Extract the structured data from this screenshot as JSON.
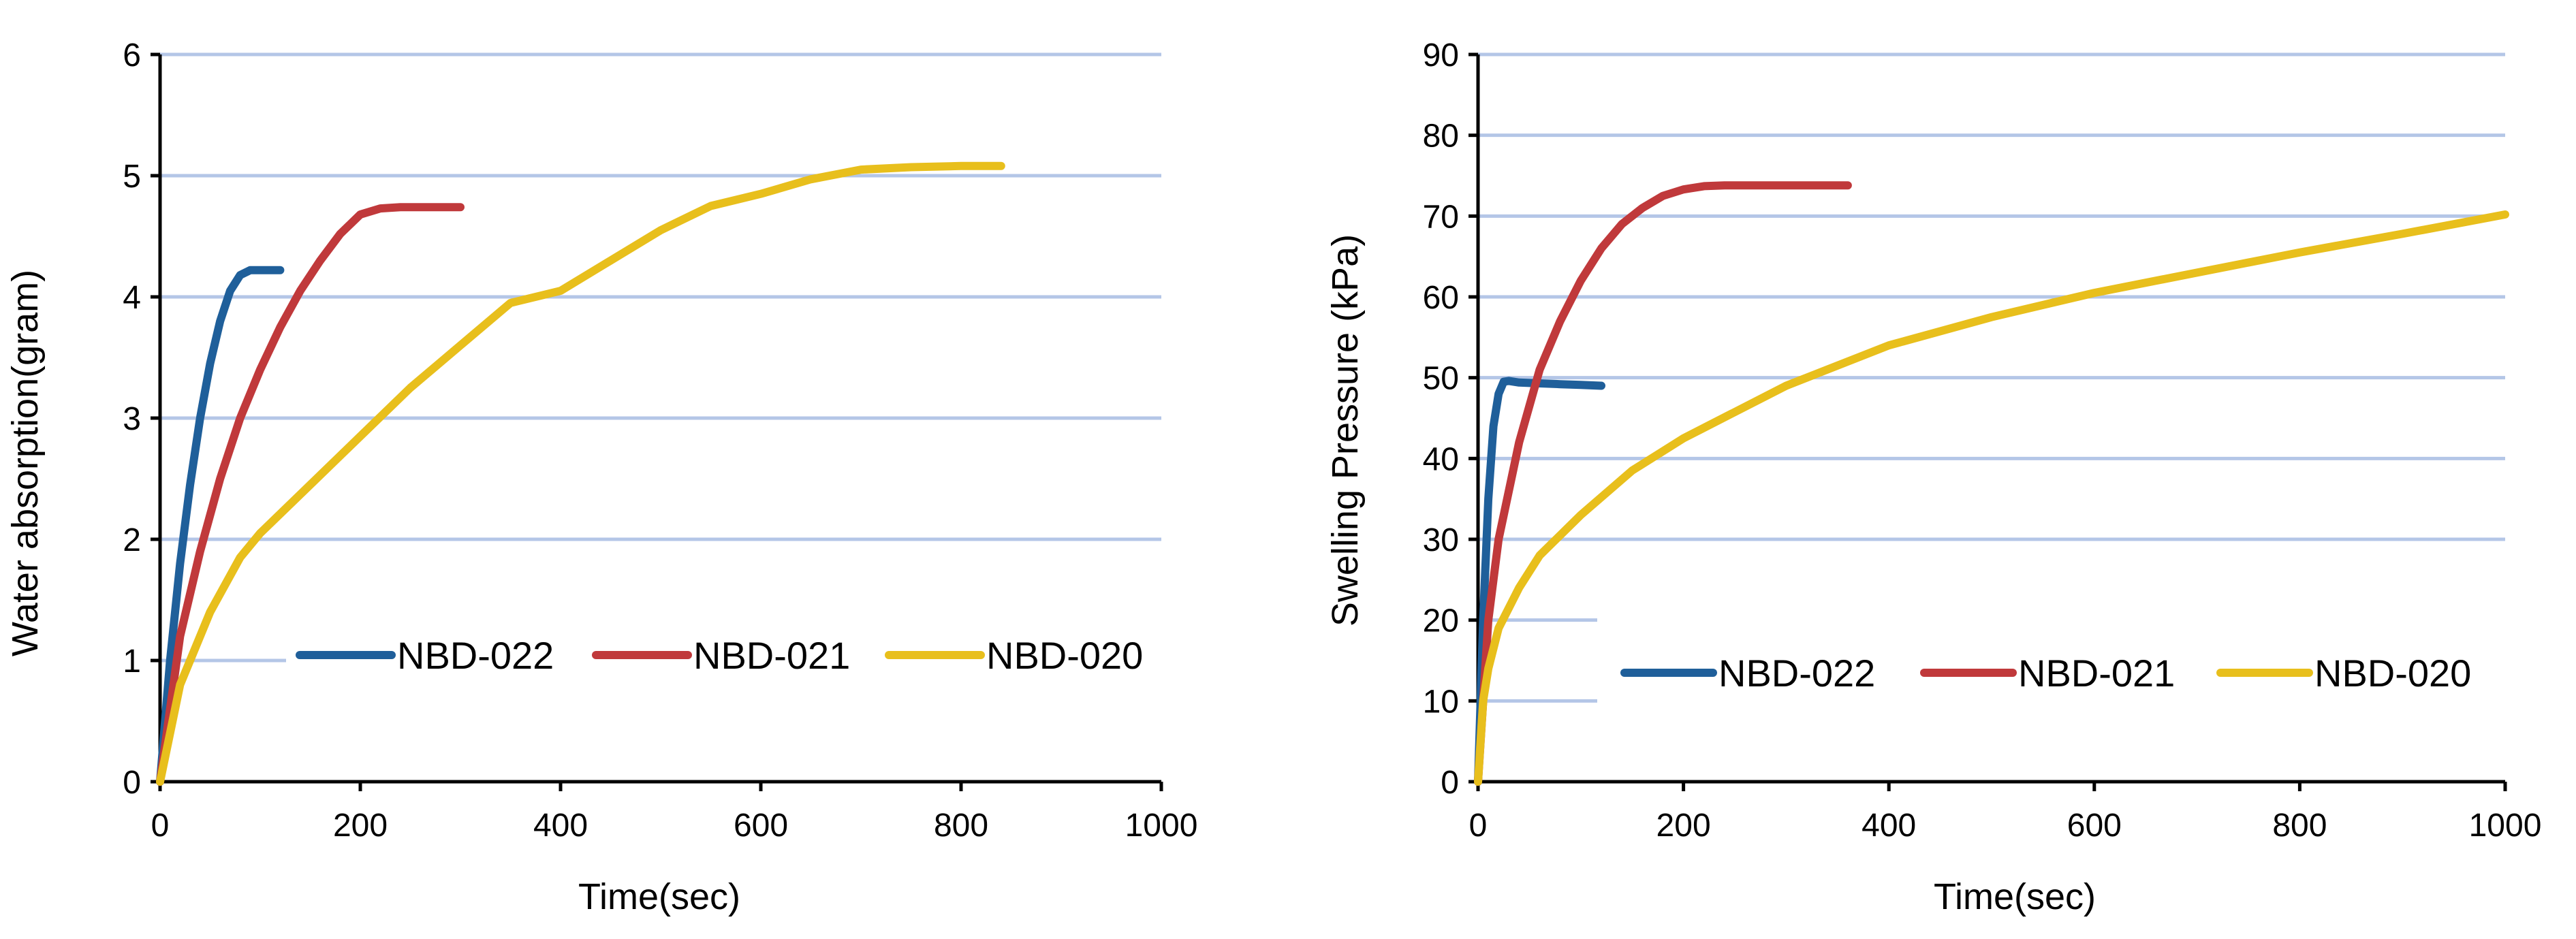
{
  "chart_data": [
    {
      "type": "line",
      "title": "",
      "xlabel": "Time(sec)",
      "ylabel": "Water absorption(gram)",
      "xlim": [
        0,
        1000
      ],
      "ylim": [
        0,
        6
      ],
      "xticks": [
        "0",
        "200",
        "400",
        "600",
        "800",
        "1000"
      ],
      "yticks": [
        "0",
        "1",
        "2",
        "3",
        "4",
        "5",
        "6"
      ],
      "grid": "horizontal",
      "legend_position": "bottom-right",
      "series": [
        {
          "name": "NBD-022",
          "color": "#1f5f9a",
          "x": [
            0,
            10,
            20,
            30,
            40,
            50,
            60,
            70,
            80,
            90,
            100,
            110,
            120
          ],
          "y": [
            0,
            1.0,
            1.8,
            2.45,
            3.0,
            3.45,
            3.8,
            4.05,
            4.18,
            4.22,
            4.22,
            4.22,
            4.22
          ]
        },
        {
          "name": "NBD-021",
          "color": "#c0393b",
          "x": [
            0,
            20,
            40,
            60,
            80,
            100,
            120,
            140,
            160,
            180,
            200,
            220,
            240,
            260,
            280,
            300
          ],
          "y": [
            0,
            1.2,
            1.9,
            2.5,
            3.0,
            3.4,
            3.75,
            4.05,
            4.3,
            4.52,
            4.68,
            4.73,
            4.74,
            4.74,
            4.74,
            4.74
          ]
        },
        {
          "name": "NBD-020",
          "color": "#e8bf1c",
          "x": [
            0,
            20,
            50,
            80,
            100,
            150,
            200,
            250,
            300,
            350,
            400,
            450,
            500,
            550,
            600,
            650,
            700,
            750,
            800,
            840
          ],
          "y": [
            0,
            0.8,
            1.4,
            1.85,
            2.05,
            2.45,
            2.85,
            3.25,
            3.6,
            3.95,
            4.05,
            4.3,
            4.55,
            4.75,
            4.85,
            4.97,
            5.05,
            5.07,
            5.08,
            5.08
          ]
        }
      ]
    },
    {
      "type": "line",
      "title": "",
      "xlabel": "Time(sec)",
      "ylabel": "Swelling  Pressure  (kPa)",
      "xlim": [
        0,
        1000
      ],
      "ylim": [
        0,
        90
      ],
      "xticks": [
        "0",
        "200",
        "400",
        "600",
        "800",
        "1000"
      ],
      "yticks": [
        "0",
        "10",
        "20",
        "30",
        "40",
        "50",
        "60",
        "70",
        "80",
        "90"
      ],
      "grid": "horizontal",
      "legend_position": "bottom-right",
      "series": [
        {
          "name": "NBD-022",
          "color": "#1f5f9a",
          "x": [
            0,
            5,
            10,
            15,
            20,
            25,
            30,
            40,
            60,
            80,
            100,
            120
          ],
          "y": [
            0,
            20,
            35,
            44,
            48,
            49.5,
            49.6,
            49.4,
            49.3,
            49.2,
            49.1,
            49.0
          ]
        },
        {
          "name": "NBD-021",
          "color": "#c0393b",
          "x": [
            0,
            10,
            20,
            40,
            60,
            80,
            100,
            120,
            140,
            160,
            180,
            200,
            220,
            240,
            280,
            320,
            360
          ],
          "y": [
            0,
            20,
            30,
            42,
            51,
            57,
            62,
            66,
            69,
            71,
            72.5,
            73.3,
            73.7,
            73.8,
            73.8,
            73.8,
            73.8
          ]
        },
        {
          "name": "NBD-020",
          "color": "#e8bf1c",
          "x": [
            0,
            5,
            10,
            20,
            40,
            60,
            100,
            150,
            200,
            300,
            400,
            500,
            600,
            700,
            800,
            900,
            1000
          ],
          "y": [
            0,
            10,
            14,
            19,
            24,
            28,
            33,
            38.5,
            42.5,
            49,
            54,
            57.5,
            60.5,
            63,
            65.5,
            67.8,
            70.2
          ]
        }
      ]
    }
  ]
}
